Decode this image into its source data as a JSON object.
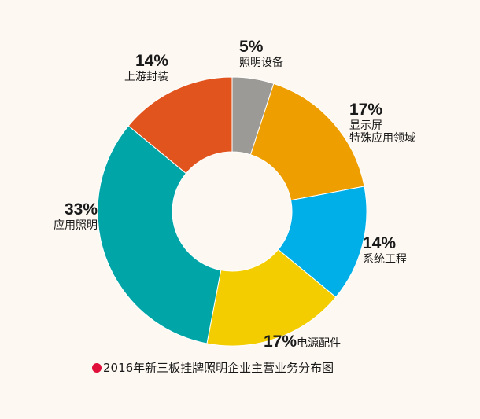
{
  "chart_data": {
    "type": "pie",
    "donut": true,
    "title": "2016年新三板挂牌照明企业主营业务分布图",
    "slices": [
      {
        "label": "照明设备",
        "value": 5,
        "color": "#9c9a97"
      },
      {
        "label": "显示屏 特殊应用领域",
        "label_lines": [
          "显示屏",
          "特殊应用领域"
        ],
        "value": 17,
        "color": "#ef9e00"
      },
      {
        "label": "系统工程",
        "value": 14,
        "color": "#00aee8"
      },
      {
        "label": "电源配件",
        "value": 17,
        "color": "#f4cd00"
      },
      {
        "label": "应用照明",
        "value": 33,
        "color": "#00a5a8"
      },
      {
        "label": "上游封装",
        "value": 14,
        "color": "#e2541e"
      }
    ],
    "start_angle": "top",
    "direction": "clockwise",
    "legend": "none",
    "caption_marker_color": "#e0103a"
  }
}
